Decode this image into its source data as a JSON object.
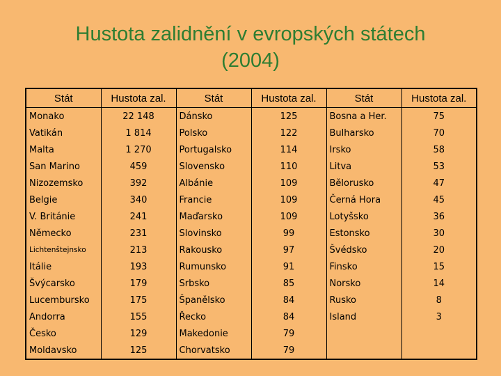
{
  "title": {
    "line1": "Hustota zalidnění v evropských státech",
    "line2": "(2004)"
  },
  "table": {
    "headers": [
      "Stát",
      "Hustota zal.",
      "Stát",
      "Hustota zal.",
      "Stát",
      "Hustota zal."
    ],
    "rows": [
      [
        "Monako",
        "22 148",
        "Dánsko",
        "125",
        "Bosna a Her.",
        "75"
      ],
      [
        "Vatikán",
        "1 814",
        "Polsko",
        "122",
        "Bulharsko",
        "70"
      ],
      [
        "Malta",
        "1 270",
        "Portugalsko",
        "114",
        "Irsko",
        "58"
      ],
      [
        "San Marino",
        "459",
        "Slovensko",
        "110",
        "Litva",
        "53"
      ],
      [
        "Nizozemsko",
        "392",
        "Albánie",
        "109",
        "Bělorusko",
        "47"
      ],
      [
        "Belgie",
        "340",
        "Francie",
        "109",
        "Černá Hora",
        "45"
      ],
      [
        "V. Británie",
        "241",
        "Maďarsko",
        "109",
        "Lotyšsko",
        "36"
      ],
      [
        "Německo",
        "231",
        "Slovinsko",
        "99",
        "Estonsko",
        "30"
      ],
      [
        "Lichtenštejnsko",
        "213",
        "Rakousko",
        "97",
        "Švédsko",
        "20"
      ],
      [
        "Itálie",
        "193",
        "Rumunsko",
        "91",
        "Finsko",
        "15"
      ],
      [
        "Švýcarsko",
        "179",
        "Srbsko",
        "85",
        "Norsko",
        "14"
      ],
      [
        "Lucembursko",
        "175",
        "Španělsko",
        "84",
        "Rusko",
        "8"
      ],
      [
        "Andorra",
        "155",
        "Řecko",
        "84",
        "Island",
        "3"
      ],
      [
        "Česko",
        "129",
        "Makedonie",
        "79",
        "",
        ""
      ],
      [
        "Moldavsko",
        "125",
        "Chorvatsko",
        "79",
        "",
        ""
      ]
    ]
  }
}
